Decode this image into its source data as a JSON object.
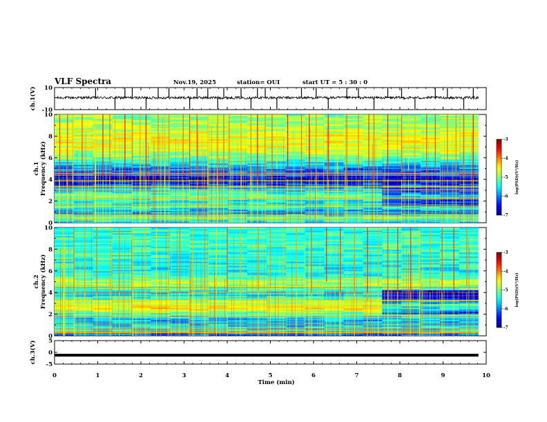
{
  "chart_data": {
    "type": "heatmap",
    "title": "VLF Spectra",
    "date": "Nov.19, 2025",
    "station": "station= OUI",
    "start_ut": "start  UT =   5 : 30 : 0",
    "xlabel": "Time  (min)",
    "x_ticks": [
      "0",
      "1",
      "2",
      "3",
      "4",
      "5",
      "6",
      "7",
      "8",
      "9",
      "10"
    ],
    "xlim": [
      0,
      10
    ],
    "data_end_min": 9.82,
    "panels": [
      {
        "id": "ch1-waveform",
        "type": "line",
        "ylabel": "ch.1(V)",
        "ylim": [
          -10,
          10
        ],
        "y_ticks": [
          "10",
          "-10"
        ],
        "baseline": 0.8,
        "noise_amplitude": 1.2,
        "spike_times_min": [
          0.95,
          1.4,
          1.63,
          1.8,
          2.12,
          2.4,
          2.65,
          3.13,
          3.3,
          3.55,
          3.78,
          3.92,
          4.32,
          4.55,
          4.7,
          4.88,
          5.15,
          5.72,
          6.06,
          6.34,
          6.77,
          7.04,
          7.4,
          7.72,
          8.04,
          8.35,
          8.82,
          9.1,
          9.48,
          9.7
        ]
      },
      {
        "id": "ch1-spectrogram",
        "type": "heatmap",
        "ylabel": "ch.1\nFrequency  (kHz)",
        "ylabel_lines": [
          "ch.1",
          "Frequency  (kHz)"
        ],
        "ylim_khz": [
          0,
          10
        ],
        "y_ticks": [
          "0",
          "2",
          "4",
          "6",
          "8",
          "10"
        ],
        "background_levels": [
          {
            "f_khz": 0.0,
            "level": -5.8
          },
          {
            "f_khz": 0.5,
            "level": -5.0
          },
          {
            "f_khz": 1.0,
            "level": -6.1
          },
          {
            "f_khz": 1.5,
            "level": -5.3
          },
          {
            "f_khz": 2.0,
            "level": -5.6
          },
          {
            "f_khz": 2.5,
            "level": -5.1
          },
          {
            "f_khz": 3.0,
            "level": -5.6
          },
          {
            "f_khz": 3.5,
            "level": -6.2
          },
          {
            "f_khz": 4.0,
            "level": -6.7
          },
          {
            "f_khz": 4.5,
            "level": -6.3
          },
          {
            "f_khz": 5.0,
            "level": -6.0
          },
          {
            "f_khz": 5.5,
            "level": -5.6
          },
          {
            "f_khz": 6.0,
            "level": -5.1
          },
          {
            "f_khz": 6.5,
            "level": -4.8
          },
          {
            "f_khz": 7.0,
            "level": -4.6
          },
          {
            "f_khz": 8.0,
            "level": -4.6
          },
          {
            "f_khz": 9.0,
            "level": -4.8
          },
          {
            "f_khz": 10.0,
            "level": -5.0
          }
        ],
        "spike_times_min": [
          0.12,
          0.3,
          0.42,
          0.64,
          0.95,
          1.12,
          1.28,
          1.4,
          1.63,
          1.8,
          1.98,
          2.12,
          2.4,
          2.55,
          2.65,
          2.98,
          3.13,
          3.3,
          3.55,
          3.78,
          3.92,
          4.05,
          4.32,
          4.55,
          4.7,
          4.88,
          5.04,
          5.15,
          5.4,
          5.72,
          5.9,
          6.06,
          6.34,
          6.55,
          6.77,
          7.04,
          7.28,
          7.4,
          7.72,
          8.04,
          8.2,
          8.35,
          8.62,
          8.82,
          9.1,
          9.3,
          9.48,
          9.7
        ],
        "late_change_min": 7.6,
        "colorbar": {
          "label": "log(PSD)(V²/Hz)",
          "range": [
            -7,
            -3
          ],
          "ticks": [
            "-3",
            "-4",
            "-5",
            "-6",
            "-7"
          ]
        }
      },
      {
        "id": "ch2-spectrogram",
        "type": "heatmap",
        "ylabel": "ch.2\nFrequency  (kHz)",
        "ylabel_lines": [
          "ch.2",
          "Frequency  (kHz)"
        ],
        "ylim_khz": [
          0,
          10
        ],
        "y_ticks": [
          "0",
          "2",
          "4",
          "6",
          "8",
          "10"
        ],
        "background_levels": [
          {
            "f_khz": 0.0,
            "level": -6.3
          },
          {
            "f_khz": 0.5,
            "level": -5.6
          },
          {
            "f_khz": 1.0,
            "level": -5.7
          },
          {
            "f_khz": 1.5,
            "level": -5.8
          },
          {
            "f_khz": 2.0,
            "level": -5.5
          },
          {
            "f_khz": 2.5,
            "level": -4.4
          },
          {
            "f_khz": 3.0,
            "level": -4.6
          },
          {
            "f_khz": 3.5,
            "level": -5.4
          },
          {
            "f_khz": 4.0,
            "level": -5.6
          },
          {
            "f_khz": 4.5,
            "level": -5.0
          },
          {
            "f_khz": 5.0,
            "level": -4.8
          },
          {
            "f_khz": 5.5,
            "level": -5.3
          },
          {
            "f_khz": 6.0,
            "level": -5.5
          },
          {
            "f_khz": 7.0,
            "level": -5.4
          },
          {
            "f_khz": 8.0,
            "level": -5.3
          },
          {
            "f_khz": 9.0,
            "level": -5.3
          },
          {
            "f_khz": 10.0,
            "level": -5.4
          }
        ],
        "spike_times_min": [
          0.2,
          0.45,
          0.7,
          0.98,
          1.3,
          1.5,
          1.82,
          2.1,
          2.36,
          2.64,
          2.9,
          3.2,
          3.48,
          3.75,
          4.0,
          4.3,
          4.72,
          5.0,
          5.3,
          5.6,
          5.95,
          6.3,
          6.62,
          6.95,
          7.25,
          7.5,
          7.72,
          7.95,
          8.25,
          8.45,
          8.7,
          8.98,
          9.25,
          9.55
        ],
        "late_change_min": 7.6,
        "colorbar": {
          "label": "log(PSD)(V²/Hz)",
          "range": [
            -7,
            -3
          ],
          "ticks": [
            "-3",
            "-4",
            "-5",
            "-6",
            "-7"
          ]
        }
      },
      {
        "id": "ch3-waveform",
        "type": "line",
        "ylabel": "ch.3(V)",
        "ylim": [
          -5,
          5
        ],
        "y_ticks": [
          "5",
          "0",
          "-5"
        ],
        "constant_value": -1.2
      }
    ]
  }
}
